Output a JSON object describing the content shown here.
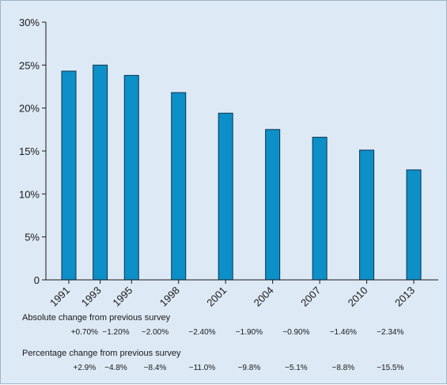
{
  "chart_data": {
    "type": "bar",
    "categories": [
      "1991",
      "1993",
      "1995",
      "1998",
      "2001",
      "2004",
      "2007",
      "2010",
      "2013"
    ],
    "values": [
      24.3,
      25.0,
      23.8,
      21.8,
      19.4,
      17.5,
      16.6,
      15.1,
      12.8
    ],
    "y_ticks": [
      "0",
      "5%",
      "10%",
      "15%",
      "20%",
      "25%",
      "30%"
    ],
    "ylim": [
      0,
      30
    ],
    "grid": false,
    "bar_color": "#0d8fc8",
    "bar_stroke": "#0b3550"
  },
  "change_table": {
    "absolute": {
      "heading": "Absolute change from previous survey",
      "values": [
        "+0.70%",
        "−1.20%",
        "−2.00%",
        "−2.40%",
        "−1.90%",
        "−0.90%",
        "−1.46%",
        "−2.34%"
      ]
    },
    "percentage": {
      "heading": "Percentage change from previous survey",
      "values": [
        "+2.9%",
        "−4.8%",
        "−8.4%",
        "−11.0%",
        "−9.8%",
        "−5.1%",
        "−8.8%",
        "−15.5%"
      ]
    }
  }
}
